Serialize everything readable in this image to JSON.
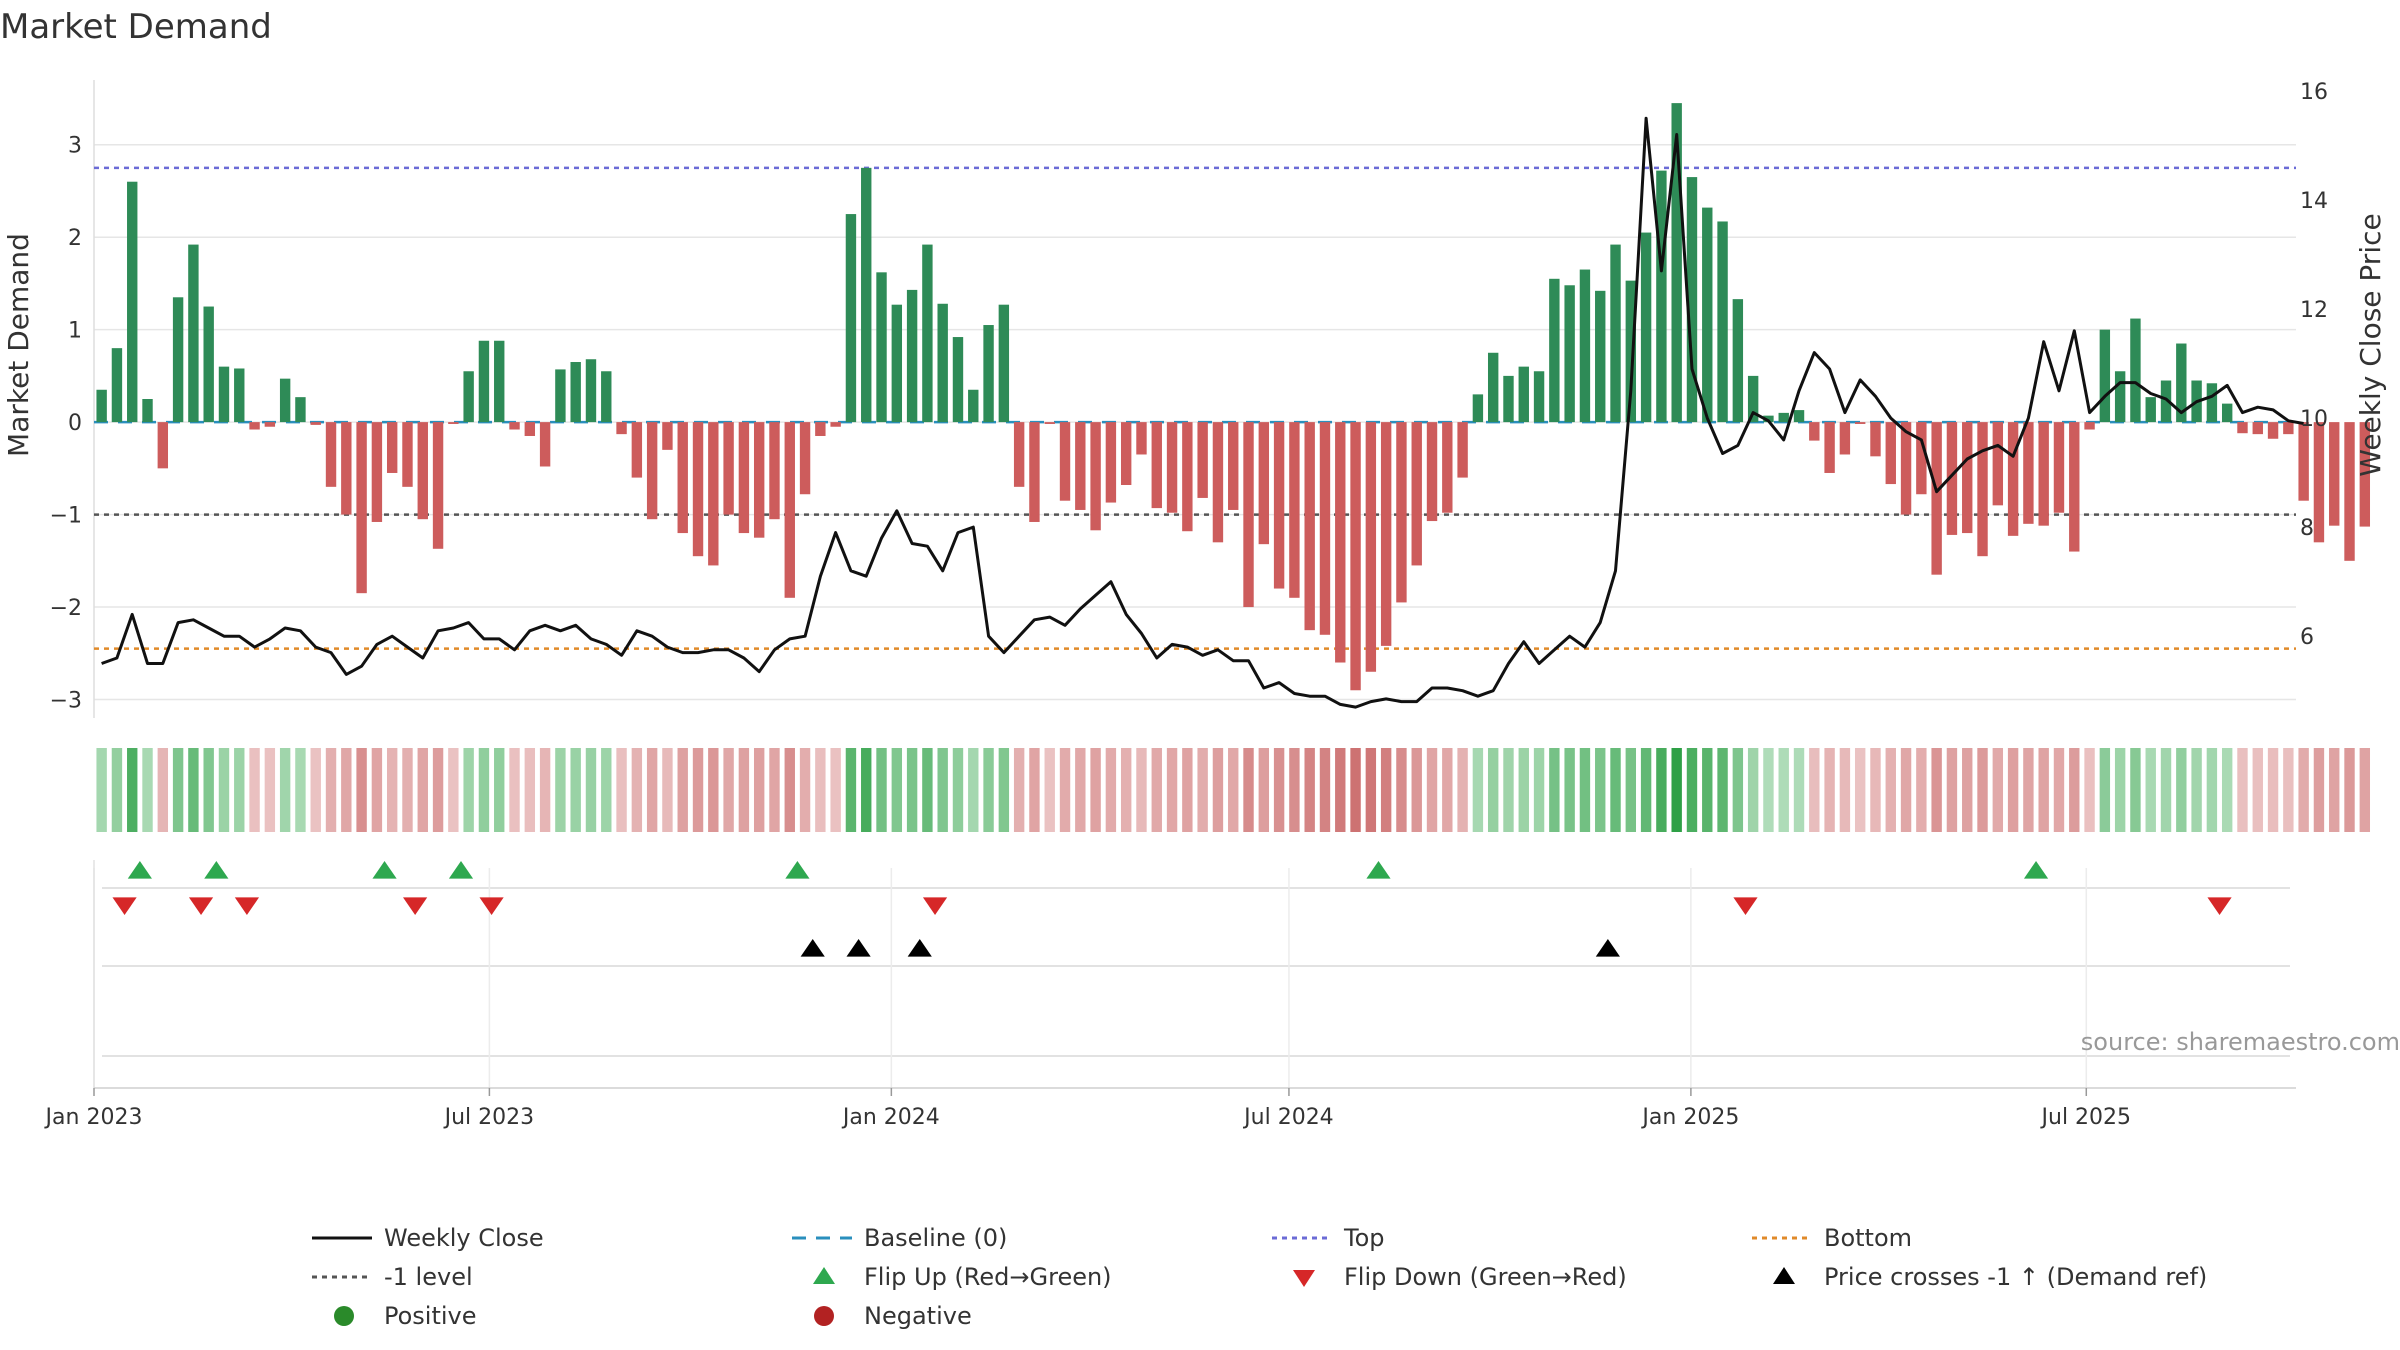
{
  "chart_data": {
    "type": "bar",
    "title": "Market Demand",
    "ylabel": "Market Demand",
    "y2label": "Weekly Close Price",
    "ylim": [
      -3.2,
      3.7
    ],
    "y2lim": [
      4.5,
      16.2
    ],
    "yticks": [
      "−3",
      "−2",
      "−1",
      "0",
      "1",
      "2",
      "3"
    ],
    "yticks_values": [
      -3,
      -2,
      -1,
      0,
      1,
      2,
      3
    ],
    "y2ticks": [
      "6",
      "8",
      "10",
      "12",
      "14",
      "16"
    ],
    "y2ticks_values": [
      6,
      8,
      10,
      12,
      14,
      16
    ],
    "x_start": "2023-01-01",
    "x_end": "2025-10-05",
    "xticks": [
      {
        "date": "2023-01-01",
        "label": "Jan 2023"
      },
      {
        "date": "2023-07-01",
        "label": "Jul 2023"
      },
      {
        "date": "2024-01-01",
        "label": "Jan 2024"
      },
      {
        "date": "2024-07-01",
        "label": "Jul 2024"
      },
      {
        "date": "2025-01-01",
        "label": "Jan 2025"
      },
      {
        "date": "2025-07-01",
        "label": "Jul 2025"
      }
    ],
    "reference_lines": {
      "top": 2.75,
      "bottom": -2.45,
      "minus_one": -1,
      "baseline": 0
    },
    "demand": [
      0.35,
      0.8,
      2.6,
      0.25,
      -0.5,
      1.35,
      1.92,
      1.25,
      0.6,
      0.58,
      -0.08,
      -0.05,
      0.47,
      0.27,
      -0.03,
      -0.7,
      -1.0,
      -1.85,
      -1.08,
      -0.55,
      -0.7,
      -1.05,
      -1.37,
      -0.02,
      0.55,
      0.88,
      0.88,
      -0.08,
      -0.15,
      -0.48,
      0.57,
      0.65,
      0.68,
      0.55,
      -0.13,
      -0.6,
      -1.05,
      -0.3,
      -1.2,
      -1.45,
      -1.55,
      -1.0,
      -1.2,
      -1.25,
      -1.05,
      -1.9,
      -0.78,
      -0.15,
      -0.05,
      2.25,
      2.75,
      1.62,
      1.27,
      1.43,
      1.92,
      1.28,
      0.92,
      0.35,
      1.05,
      1.27,
      -0.7,
      -1.08,
      -0.02,
      -0.85,
      -0.95,
      -1.17,
      -0.87,
      -0.68,
      -0.35,
      -0.93,
      -0.98,
      -1.18,
      -0.82,
      -1.3,
      -0.95,
      -2.0,
      -1.32,
      -1.8,
      -1.9,
      -2.25,
      -2.3,
      -2.6,
      -2.9,
      -2.7,
      -2.42,
      -1.95,
      -1.55,
      -1.07,
      -0.98,
      -0.6,
      0.3,
      0.75,
      0.5,
      0.6,
      0.55,
      1.55,
      1.48,
      1.65,
      1.42,
      1.92,
      1.53,
      2.05,
      2.72,
      3.45,
      2.65,
      2.32,
      2.17,
      1.33,
      0.5,
      0.07,
      0.1,
      0.13,
      -0.2,
      -0.55,
      -0.35,
      -0.02,
      -0.37,
      -0.67,
      -1.0,
      -0.78,
      -1.65,
      -1.22,
      -1.2,
      -1.45,
      -0.9,
      -1.23,
      -1.1,
      -1.12,
      -0.98,
      -1.4,
      -0.08,
      1.0,
      0.55,
      1.12,
      0.27,
      0.45,
      0.85,
      0.45,
      0.42,
      0.2,
      -0.12,
      -0.13,
      -0.18,
      -0.13,
      -0.85,
      -1.3,
      -1.12,
      -1.5,
      -1.13
    ],
    "price": [
      5.5,
      5.6,
      6.4,
      5.5,
      5.5,
      6.25,
      6.3,
      6.15,
      6.0,
      6.0,
      5.8,
      5.95,
      6.15,
      6.1,
      5.8,
      5.7,
      5.3,
      5.45,
      5.85,
      6.0,
      5.8,
      5.6,
      6.1,
      6.15,
      6.25,
      5.95,
      5.95,
      5.75,
      6.1,
      6.2,
      6.1,
      6.2,
      5.95,
      5.85,
      5.65,
      6.1,
      6.0,
      5.8,
      5.7,
      5.7,
      5.75,
      5.75,
      5.6,
      5.35,
      5.75,
      5.95,
      6.0,
      7.1,
      7.9,
      7.2,
      7.1,
      7.8,
      8.3,
      7.7,
      7.65,
      7.2,
      7.9,
      8.0,
      6.0,
      5.7,
      6.0,
      6.3,
      6.35,
      6.2,
      6.5,
      6.75,
      7.0,
      6.4,
      6.05,
      5.6,
      5.85,
      5.8,
      5.65,
      5.75,
      5.55,
      5.55,
      5.05,
      5.15,
      4.95,
      4.9,
      4.9,
      4.75,
      4.7,
      4.8,
      4.85,
      4.8,
      4.8,
      5.05,
      5.05,
      5.0,
      4.9,
      5.0,
      5.5,
      5.9,
      5.5,
      5.75,
      6.0,
      5.8,
      6.25,
      7.2,
      10.5,
      15.5,
      12.7,
      15.2,
      10.9,
      10.0,
      9.35,
      9.5,
      10.1,
      9.95,
      9.6,
      10.5,
      11.2,
      10.9,
      10.1,
      10.7,
      10.4,
      10.0,
      9.75,
      9.6,
      8.65,
      8.95,
      9.25,
      9.4,
      9.5,
      9.3,
      10.0,
      11.4,
      10.5,
      11.6,
      10.1,
      10.4,
      10.65,
      10.65,
      10.45,
      10.35,
      10.1,
      10.3,
      10.4,
      10.6,
      10.1,
      10.2,
      10.15,
      9.95,
      9.9
    ],
    "flip_up": [
      "2023-01-22",
      "2023-02-26",
      "2023-05-14",
      "2023-06-18",
      "2023-11-19",
      "2024-08-11",
      "2025-06-08"
    ],
    "flip_down": [
      "2023-01-15",
      "2023-02-19",
      "2023-03-12",
      "2023-05-28",
      "2023-07-02",
      "2024-01-21",
      "2025-01-26",
      "2025-08-31"
    ],
    "price_crosses": [
      "2023-11-26",
      "2023-12-17",
      "2024-01-14",
      "2024-11-24"
    ],
    "legend": [
      {
        "label": "Weekly Close",
        "kind": "line-solid",
        "color": "#111111"
      },
      {
        "label": "Baseline (0)",
        "kind": "line-dash",
        "color": "#2a8fbd"
      },
      {
        "label": "Top",
        "kind": "line-dot",
        "color": "#6b6bd6"
      },
      {
        "label": "Bottom",
        "kind": "line-dot",
        "color": "#e08a2a"
      },
      {
        "label": "-1 level",
        "kind": "line-dot",
        "color": "#555555"
      },
      {
        "label": "Flip Up (Red→Green)",
        "kind": "tri-up",
        "color": "#2ea84f"
      },
      {
        "label": "Flip Down (Green→Red)",
        "kind": "tri-down",
        "color": "#d62728"
      },
      {
        "label": "Price crosses -1 ↑ (Demand ref)",
        "kind": "tri-up",
        "color": "#000000"
      },
      {
        "label": "Positive",
        "kind": "dot",
        "color": "#2a8a2a"
      },
      {
        "label": "Negative",
        "kind": "dot",
        "color": "#b22222"
      }
    ],
    "colors": {
      "positive_bar": "#2e8b57",
      "negative_bar": "#cd5c5c",
      "price_line": "#111111"
    },
    "source": "source: sharemaestro.com"
  }
}
